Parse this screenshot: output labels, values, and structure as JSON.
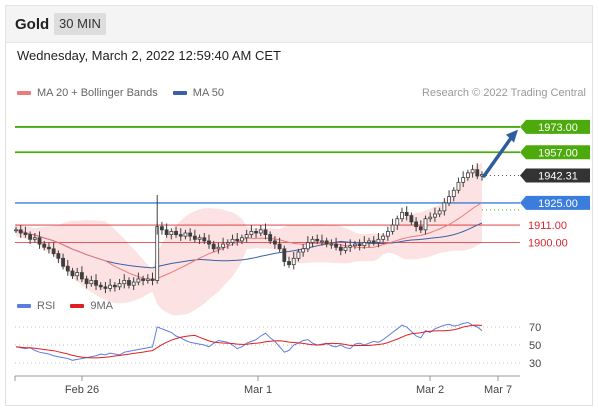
{
  "header": {
    "title": "Gold",
    "timeframe": "30 MIN"
  },
  "datetime": "Wednesday, March 2, 2022 12:59:40 AM CET",
  "legend": {
    "ma20": "MA 20 + Bollinger Bands",
    "ma50": "MA 50"
  },
  "copyright": "Research © 2022 Trading Central",
  "rsi_legend": {
    "rsi": "RSI",
    "ma": "9MA"
  },
  "colors": {
    "resistance": "#4caa0c",
    "support_line": "#3b7ddd",
    "red_level": "#d9282f",
    "current": "#333333",
    "arrow": "#2e5d9c",
    "bollinger": "#fbd8d8",
    "ma20": "#ef7a7a",
    "ma50": "#3a5fa8",
    "rsi": "#5b7fe0",
    "rsi_ma": "#e02020",
    "candle": "#3e3e3e"
  },
  "chart_data": {
    "type": "candlestick",
    "x_ticks": [
      "Feb 26",
      "Mar 1",
      "Mar 2",
      "Mar 7"
    ],
    "levels": [
      {
        "value": 1973.0,
        "label": "1973.00",
        "kind": "resistance"
      },
      {
        "value": 1957.0,
        "label": "1957.00",
        "kind": "resistance"
      },
      {
        "value": 1942.31,
        "label": "1942.31",
        "kind": "current"
      },
      {
        "value": 1925.0,
        "label": "1925.00",
        "kind": "pivot"
      },
      {
        "value": 1911.0,
        "label": "1911.00",
        "kind": "support"
      },
      {
        "value": 1900.0,
        "label": "1900.00",
        "kind": "support"
      }
    ],
    "price_range": [
      1870,
      1990
    ],
    "close": [
      1908,
      1906,
      1905,
      1902,
      1903,
      1899,
      1897,
      1896,
      1893,
      1890,
      1885,
      1882,
      1879,
      1881,
      1877,
      1874,
      1876,
      1873,
      1872,
      1871,
      1873,
      1872,
      1874,
      1876,
      1873,
      1875,
      1877,
      1876,
      1877,
      1876,
      1910,
      1908,
      1905,
      1907,
      1905,
      1904,
      1906,
      1904,
      1902,
      1903,
      1901,
      1899,
      1896,
      1897,
      1899,
      1900,
      1902,
      1901,
      1903,
      1905,
      1907,
      1906,
      1908,
      1905,
      1901,
      1899,
      1896,
      1888,
      1886,
      1890,
      1894,
      1896,
      1900,
      1902,
      1901,
      1901,
      1899,
      1899,
      1897,
      1895,
      1897,
      1898,
      1899,
      1898,
      1900,
      1901,
      1900,
      1902,
      1904,
      1907,
      1911,
      1915,
      1919,
      1917,
      1913,
      1910,
      1908,
      1915,
      1916,
      1918,
      1920,
      1925,
      1929,
      1933,
      1938,
      1941,
      1944,
      1946,
      1942,
      1943
    ],
    "rsi": [
      48,
      47,
      46,
      47,
      44,
      42,
      41,
      40,
      38,
      37,
      36,
      35,
      33,
      34,
      35,
      36,
      37,
      38,
      40,
      39,
      41,
      40,
      39,
      42,
      43,
      44,
      45,
      46,
      47,
      48,
      70,
      68,
      66,
      64,
      60,
      58,
      55,
      53,
      52,
      51,
      50,
      48,
      52,
      55,
      54,
      53,
      50,
      46,
      48,
      52,
      54,
      56,
      60,
      63,
      58,
      54,
      48,
      42,
      44,
      50,
      52,
      55,
      56,
      52,
      50,
      51,
      52,
      49,
      48,
      50,
      47,
      46,
      51,
      52,
      50,
      52,
      54,
      53,
      56,
      60,
      64,
      68,
      72,
      70,
      65,
      60,
      58,
      66,
      64,
      68,
      70,
      72,
      73,
      71,
      72,
      74,
      75,
      72,
      70,
      66
    ],
    "rsi_ticks": [
      70,
      50,
      30
    ],
    "rsi_range": [
      20,
      80
    ]
  }
}
